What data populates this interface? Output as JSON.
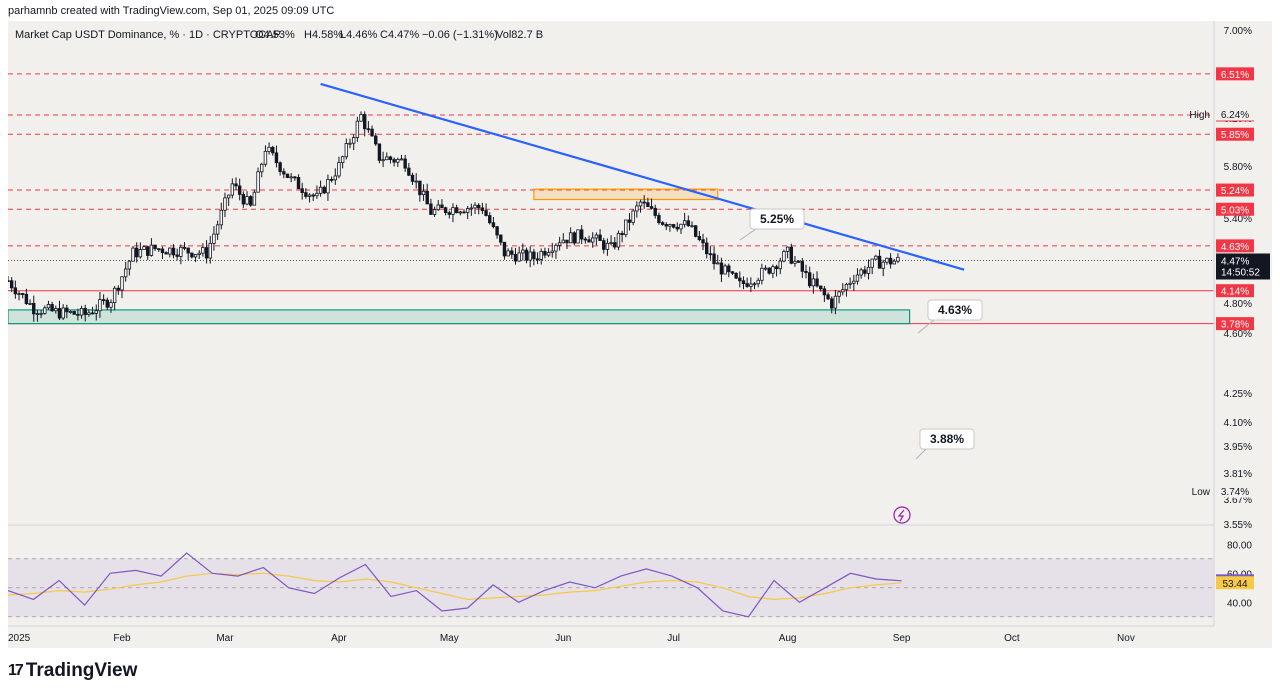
{
  "attribution": "parhamnb created with TradingView.com, Sep 01, 2025 09:09 UTC",
  "symbol_line": {
    "name": "Market Cap USDT Dominance, % · 1D · CRYPTOCAP",
    "open": "O4.53%",
    "high": "H4.58%",
    "low": "L4.46%",
    "close": "C4.47%",
    "change": "−0.06 (−1.31%)",
    "volume": "Vol82.7 B"
  },
  "brand": "TradingView",
  "colors": {
    "background": "#f2f0ec",
    "candle": "#131722",
    "trendline": "#2962ff",
    "level_dashed": "#f23645",
    "support_zone": "#089981",
    "resistance_zone": "#ff9800",
    "rsi_line": "#7e57c2",
    "rsi_ma": "#f7c948"
  },
  "chart_data": {
    "type": "candlestick",
    "x_axis_labels": [
      "2025",
      "Feb",
      "Mar",
      "Apr",
      "May",
      "Jun",
      "Jul",
      "Aug",
      "Sep",
      "Oct",
      "Nov"
    ],
    "y_axis_ticks": [
      "7.00%",
      "6.60%",
      "6.20%",
      "5.80%",
      "5.60%",
      "5.40%",
      "5.20%",
      "5.00%",
      "4.80%",
      "4.60%",
      "4.25%",
      "4.10%",
      "3.95%",
      "3.81%",
      "3.67%",
      "3.55%"
    ],
    "ylim": [
      3.55,
      7.0
    ],
    "price_levels": [
      {
        "label": "6.51%",
        "value": 6.51,
        "style": "dashed"
      },
      {
        "label": "6.06%",
        "value": 6.06,
        "style": "dashed"
      },
      {
        "label": "5.85%",
        "value": 5.85,
        "style": "dashed"
      },
      {
        "label": "5.24%",
        "value": 5.24,
        "style": "dashed"
      },
      {
        "label": "5.03%",
        "value": 5.03,
        "style": "dashed"
      },
      {
        "label": "4.63%",
        "value": 4.63,
        "style": "dashed"
      },
      {
        "label": "4.14%",
        "value": 4.14,
        "style": "solid"
      },
      {
        "label": "3.78%",
        "value": 3.78,
        "style": "solid"
      }
    ],
    "high_marker": {
      "label": "High",
      "value": "6.24%"
    },
    "low_marker": {
      "label": "Low",
      "value": "3.74%"
    },
    "current_price": {
      "value": "4.47%",
      "countdown": "14:50:52"
    },
    "callouts": [
      "5.25%",
      "4.63%",
      "3.88%"
    ],
    "trendline": {
      "from": {
        "date": "2025-03-27",
        "value": 6.4
      },
      "to": {
        "date": "2025-09-18",
        "value": 4.37
      }
    },
    "support_zone": {
      "from": "2024-12-30",
      "to": "2025-09-01",
      "top": 3.93,
      "bottom": 3.78
    },
    "resistance_zone": {
      "from": "2025-05-24",
      "to": "2025-07-13",
      "top": 5.25,
      "bottom": 5.18
    },
    "closes": [
      {
        "date": "2025-01-01",
        "close": 4.25
      },
      {
        "date": "2025-01-08",
        "close": 3.95
      },
      {
        "date": "2025-01-15",
        "close": 3.9
      },
      {
        "date": "2025-01-22",
        "close": 3.88
      },
      {
        "date": "2025-01-29",
        "close": 4.05
      },
      {
        "date": "2025-02-04",
        "close": 4.55
      },
      {
        "date": "2025-02-10",
        "close": 4.6
      },
      {
        "date": "2025-02-17",
        "close": 4.58
      },
      {
        "date": "2025-02-24",
        "close": 4.55
      },
      {
        "date": "2025-03-03",
        "close": 5.3
      },
      {
        "date": "2025-03-08",
        "close": 5.05
      },
      {
        "date": "2025-03-12",
        "close": 5.7
      },
      {
        "date": "2025-03-19",
        "close": 5.35
      },
      {
        "date": "2025-03-26",
        "close": 5.15
      },
      {
        "date": "2025-04-01",
        "close": 5.5
      },
      {
        "date": "2025-04-07",
        "close": 6.05
      },
      {
        "date": "2025-04-12",
        "close": 5.6
      },
      {
        "date": "2025-04-19",
        "close": 5.55
      },
      {
        "date": "2025-04-26",
        "close": 5.0
      },
      {
        "date": "2025-05-03",
        "close": 5.05
      },
      {
        "date": "2025-05-10",
        "close": 5.05
      },
      {
        "date": "2025-05-16",
        "close": 4.55
      },
      {
        "date": "2025-05-24",
        "close": 4.5
      },
      {
        "date": "2025-05-31",
        "close": 4.7
      },
      {
        "date": "2025-06-07",
        "close": 4.75
      },
      {
        "date": "2025-06-14",
        "close": 4.6
      },
      {
        "date": "2025-06-22",
        "close": 5.1
      },
      {
        "date": "2025-06-28",
        "close": 4.9
      },
      {
        "date": "2025-07-05",
        "close": 4.85
      },
      {
        "date": "2025-07-12",
        "close": 4.45
      },
      {
        "date": "2025-07-19",
        "close": 4.2
      },
      {
        "date": "2025-07-26",
        "close": 4.35
      },
      {
        "date": "2025-08-01",
        "close": 4.55
      },
      {
        "date": "2025-08-07",
        "close": 4.25
      },
      {
        "date": "2025-08-13",
        "close": 4.0
      },
      {
        "date": "2025-08-19",
        "close": 4.3
      },
      {
        "date": "2025-08-25",
        "close": 4.45
      },
      {
        "date": "2025-09-01",
        "close": 4.47
      }
    ],
    "rsi": {
      "ticks": [
        "80.00",
        "60.00",
        "40.00"
      ],
      "ylim": [
        25,
        85
      ],
      "band": [
        30,
        70
      ],
      "rsi_value": "54.78",
      "ma_value": "53.44",
      "rsi_series": [
        48,
        42,
        55,
        38,
        60,
        62,
        58,
        74,
        60,
        58,
        64,
        50,
        46,
        57,
        66,
        44,
        48,
        34,
        36,
        52,
        40,
        48,
        54,
        50,
        58,
        63,
        58,
        50,
        34,
        30,
        55,
        40,
        50,
        60,
        56,
        54.78
      ],
      "ma_series": [
        45,
        46,
        48,
        47,
        49,
        52,
        54,
        58,
        60,
        59,
        60,
        58,
        55,
        54,
        56,
        54,
        50,
        46,
        42,
        43,
        44,
        45,
        47,
        48,
        51,
        54,
        55,
        54,
        50,
        44,
        42,
        43,
        46,
        50,
        52,
        53.44
      ]
    }
  }
}
